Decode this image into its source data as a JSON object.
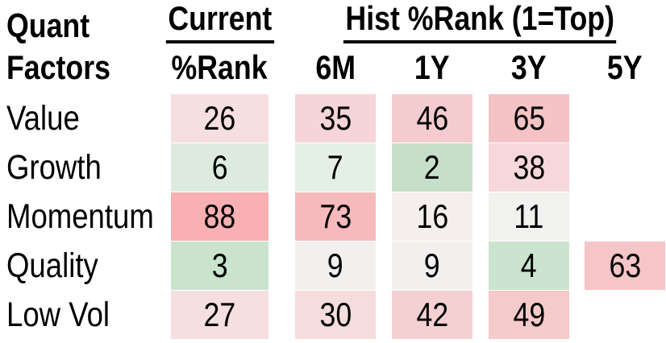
{
  "corner": {
    "line1": "Quant",
    "line2": "Factors"
  },
  "group_headers": {
    "current": "Current",
    "hist": "Hist %Rank (1=Top)"
  },
  "column_headers": [
    "%Rank",
    "6M",
    "1Y",
    "3Y",
    "5Y"
  ],
  "rows": [
    {
      "label": "Value",
      "cells": [
        {
          "v": "26",
          "bg": "#f6dfe1"
        },
        {
          "v": "35",
          "bg": "#f5d5d7"
        },
        {
          "v": "46",
          "bg": "#f4cccf"
        },
        {
          "v": "65",
          "bg": "#f5c3c6"
        },
        null
      ]
    },
    {
      "label": "Growth",
      "cells": [
        {
          "v": "6",
          "bg": "#dcebdd"
        },
        {
          "v": "7",
          "bg": "#e4f0e5"
        },
        {
          "v": "2",
          "bg": "#c6dfc9"
        },
        {
          "v": "38",
          "bg": "#f6d8da"
        },
        null
      ]
    },
    {
      "label": "Momentum",
      "cells": [
        {
          "v": "88",
          "bg": "#f9b0b2"
        },
        {
          "v": "73",
          "bg": "#f7babc"
        },
        {
          "v": "16",
          "bg": "#f4efed"
        },
        {
          "v": "11",
          "bg": "#f1f1f0"
        },
        null
      ]
    },
    {
      "label": "Quality",
      "cells": [
        {
          "v": "3",
          "bg": "#c9e3cd"
        },
        {
          "v": "9",
          "bg": "#f2f0ef"
        },
        {
          "v": "9",
          "bg": "#f2f0ef"
        },
        {
          "v": "4",
          "bg": "#cbe4cf"
        },
        {
          "v": "63",
          "bg": "#f6c5c8"
        }
      ]
    },
    {
      "label": "Low Vol",
      "cells": [
        {
          "v": "27",
          "bg": "#f6dfe0"
        },
        {
          "v": "30",
          "bg": "#f6dddd"
        },
        {
          "v": "42",
          "bg": "#f5d0d2"
        },
        {
          "v": "49",
          "bg": "#f5caca"
        },
        null
      ]
    }
  ],
  "chart_data": {
    "type": "heatmap",
    "row_header": "Quant Factors",
    "column_groups": [
      {
        "label": "Current",
        "columns": [
          "%Rank"
        ]
      },
      {
        "label": "Hist %Rank (1=Top)",
        "columns": [
          "6M",
          "1Y",
          "3Y",
          "5Y"
        ]
      }
    ],
    "columns": [
      "%Rank",
      "6M",
      "1Y",
      "3Y",
      "5Y"
    ],
    "rows": [
      "Value",
      "Growth",
      "Momentum",
      "Quality",
      "Low Vol"
    ],
    "values": [
      [
        26,
        35,
        46,
        65,
        null
      ],
      [
        6,
        7,
        2,
        38,
        null
      ],
      [
        88,
        73,
        16,
        11,
        null
      ],
      [
        3,
        9,
        9,
        4,
        63
      ],
      [
        27,
        30,
        42,
        49,
        null
      ]
    ],
    "scale_note": "1=Top; green = low percentile rank, red = high percentile rank",
    "scale_colors": {
      "low": "#c6dfc9",
      "mid": "#f2f1f0",
      "high": "#f9b0b2"
    }
  }
}
